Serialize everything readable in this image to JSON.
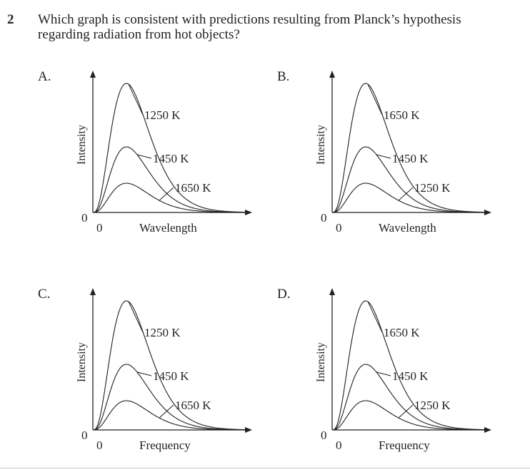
{
  "question": {
    "number": "2",
    "text": "Which graph is consistent with predictions resulting from Planck’s hypothesis regarding radiation from hot objects?"
  },
  "options": [
    {
      "letter": "A.",
      "xlabel": "Wavelength",
      "ylabel": "Intensity",
      "origin_y": "0",
      "origin_x": "0",
      "curve_labels": [
        "1250 K",
        "1450 K",
        "1650 K"
      ]
    },
    {
      "letter": "B.",
      "xlabel": "Wavelength",
      "ylabel": "Intensity",
      "origin_y": "0",
      "origin_x": "0",
      "curve_labels": [
        "1650 K",
        "1450 K",
        "1250 K"
      ]
    },
    {
      "letter": "C.",
      "xlabel": "Frequency",
      "ylabel": "Intensity",
      "origin_y": "0",
      "origin_x": "0",
      "curve_labels": [
        "1250 K",
        "1450 K",
        "1650 K"
      ]
    },
    {
      "letter": "D.",
      "xlabel": "Frequency",
      "ylabel": "Intensity",
      "origin_y": "0",
      "origin_x": "0",
      "curve_labels": [
        "1650 K",
        "1450 K",
        "1250 K"
      ]
    }
  ],
  "chart_data": [
    {
      "type": "line",
      "xlabel": "Wavelength",
      "ylabel": "Intensity",
      "series": [
        {
          "name": "1250 K",
          "peak_intensity": 1.0
        },
        {
          "name": "1450 K",
          "peak_intensity": 0.55
        },
        {
          "name": "1650 K",
          "peak_intensity": 0.3
        }
      ]
    },
    {
      "type": "line",
      "xlabel": "Wavelength",
      "ylabel": "Intensity",
      "series": [
        {
          "name": "1650 K",
          "peak_intensity": 1.0
        },
        {
          "name": "1450 K",
          "peak_intensity": 0.55
        },
        {
          "name": "1250 K",
          "peak_intensity": 0.3
        }
      ]
    },
    {
      "type": "line",
      "xlabel": "Frequency",
      "ylabel": "Intensity",
      "series": [
        {
          "name": "1250 K",
          "peak_intensity": 1.0
        },
        {
          "name": "1450 K",
          "peak_intensity": 0.55
        },
        {
          "name": "1650 K",
          "peak_intensity": 0.3
        }
      ]
    },
    {
      "type": "line",
      "xlabel": "Frequency",
      "ylabel": "Intensity",
      "series": [
        {
          "name": "1650 K",
          "peak_intensity": 1.0
        },
        {
          "name": "1450 K",
          "peak_intensity": 0.55
        },
        {
          "name": "1250 K",
          "peak_intensity": 0.3
        }
      ]
    }
  ]
}
